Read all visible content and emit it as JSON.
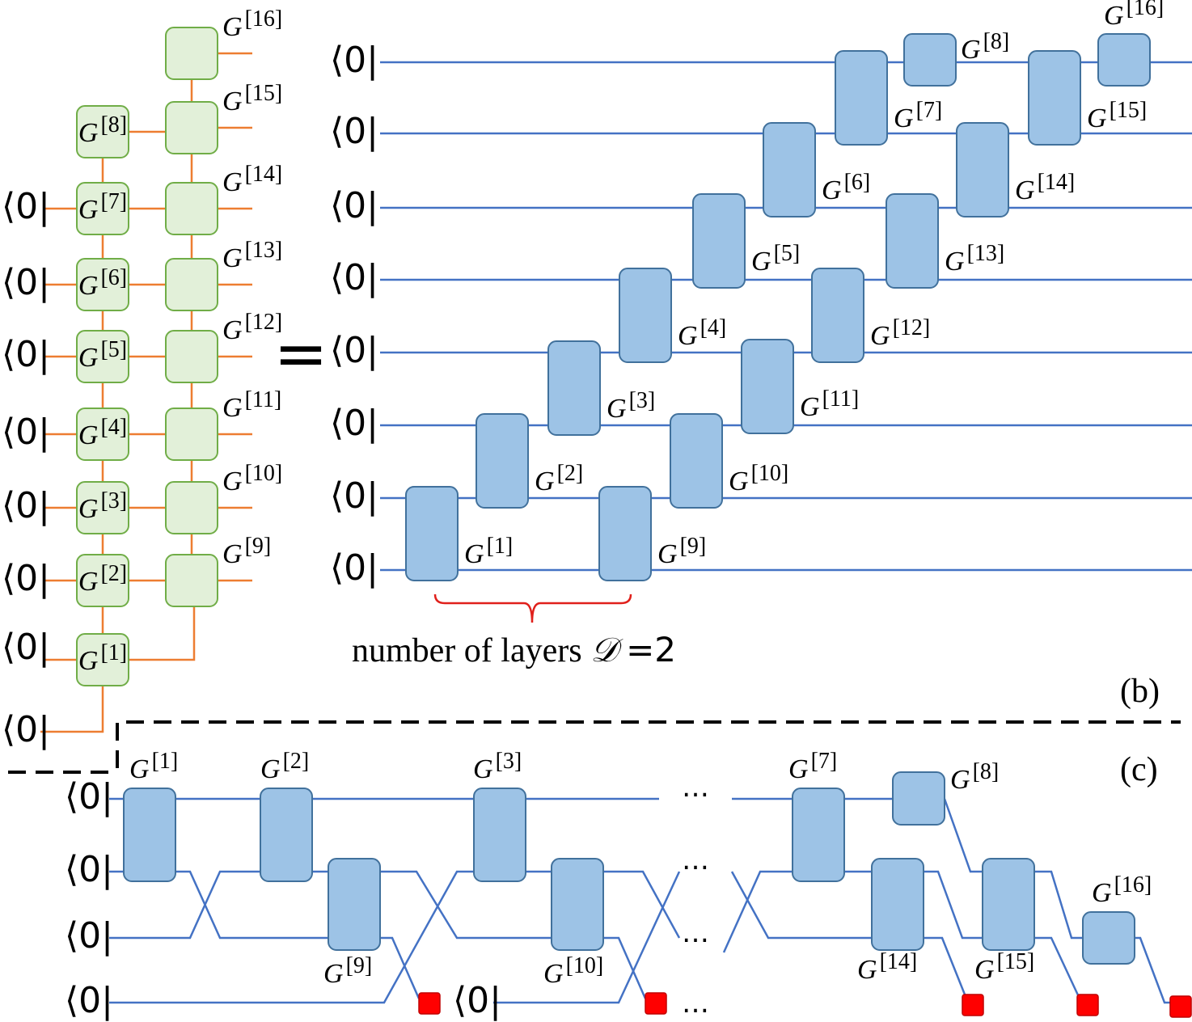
{
  "panel_a": {
    "bras": [
      "⟨0|",
      "⟨0|",
      "⟨0|",
      "⟨0|",
      "⟨0|",
      "⟨0|",
      "⟨0|",
      "⟨0|"
    ],
    "gates": [
      {
        "symbol": "G",
        "index": "[1]"
      },
      {
        "symbol": "G",
        "index": "[2]"
      },
      {
        "symbol": "G",
        "index": "[3]"
      },
      {
        "symbol": "G",
        "index": "[4]"
      },
      {
        "symbol": "G",
        "index": "[5]"
      },
      {
        "symbol": "G",
        "index": "[6]"
      },
      {
        "symbol": "G",
        "index": "[7]"
      },
      {
        "symbol": "G",
        "index": "[8]"
      },
      {
        "symbol": "G",
        "index": "[9]"
      },
      {
        "symbol": "G",
        "index": "[10]"
      },
      {
        "symbol": "G",
        "index": "[11]"
      },
      {
        "symbol": "G",
        "index": "[12]"
      },
      {
        "symbol": "G",
        "index": "[13]"
      },
      {
        "symbol": "G",
        "index": "[14]"
      },
      {
        "symbol": "G",
        "index": "[15]"
      },
      {
        "symbol": "G",
        "index": "[16]"
      }
    ]
  },
  "equals_sign": "=",
  "panel_b": {
    "bras": [
      "⟨0|",
      "⟨0|",
      "⟨0|",
      "⟨0|",
      "⟨0|",
      "⟨0|",
      "⟨0|",
      "⟨0|"
    ],
    "gates": [
      {
        "symbol": "G",
        "index": "[1]"
      },
      {
        "symbol": "G",
        "index": "[2]"
      },
      {
        "symbol": "G",
        "index": "[3]"
      },
      {
        "symbol": "G",
        "index": "[4]"
      },
      {
        "symbol": "G",
        "index": "[5]"
      },
      {
        "symbol": "G",
        "index": "[6]"
      },
      {
        "symbol": "G",
        "index": "[7]"
      },
      {
        "symbol": "G",
        "index": "[8]"
      },
      {
        "symbol": "G",
        "index": "[9]"
      },
      {
        "symbol": "G",
        "index": "[10]"
      },
      {
        "symbol": "G",
        "index": "[11]"
      },
      {
        "symbol": "G",
        "index": "[12]"
      },
      {
        "symbol": "G",
        "index": "[13]"
      },
      {
        "symbol": "G",
        "index": "[14]"
      },
      {
        "symbol": "G",
        "index": "[15]"
      },
      {
        "symbol": "G",
        "index": "[16]"
      }
    ],
    "caption": {
      "text": "number of layers",
      "symbol": "𝒟",
      "equals": "=2"
    },
    "label": "(b)"
  },
  "panel_c": {
    "bras": [
      "⟨0|",
      "⟨0|",
      "⟨0|",
      "⟨0|",
      "⟨0|"
    ],
    "gates": [
      {
        "symbol": "G",
        "index": "[1]"
      },
      {
        "symbol": "G",
        "index": "[2]"
      },
      {
        "symbol": "G",
        "index": "[3]"
      },
      {
        "symbol": "G",
        "index": "[7]"
      },
      {
        "symbol": "G",
        "index": "[8]"
      },
      {
        "symbol": "G",
        "index": "[9]"
      },
      {
        "symbol": "G",
        "index": "[10]"
      },
      {
        "symbol": "G",
        "index": "[14]"
      },
      {
        "symbol": "G",
        "index": "[15]"
      },
      {
        "symbol": "G",
        "index": "[16]"
      }
    ],
    "ellipses": [
      "…",
      "…",
      "…",
      "…"
    ],
    "label": "(c)"
  }
}
